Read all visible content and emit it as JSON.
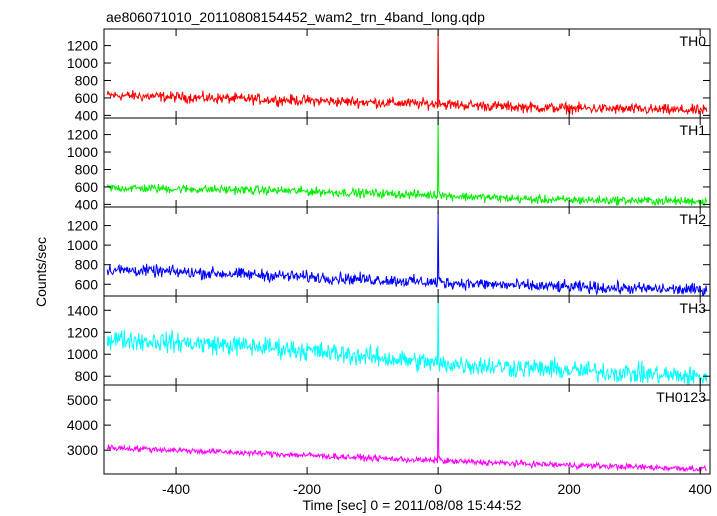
{
  "chart_data": {
    "type": "line",
    "title": "ae806071010_20110808154452_wam2_trn_4band_long.qdp",
    "xlabel": "Time [sec] 0 = 2011/08/08 15:44:52",
    "ylabel": "Counts/sec",
    "xlim": [
      -510,
      415
    ],
    "x_ticks": [
      -400,
      -200,
      0,
      200,
      400
    ],
    "grid": false,
    "panels": [
      {
        "name": "TH0",
        "color": "#ff0000",
        "ylim": [
          370,
          1390
        ],
        "y_ticks": [
          400,
          600,
          800,
          1000,
          1200
        ],
        "trend": [
          [
            -500,
            630
          ],
          [
            -250,
            580
          ],
          [
            -5,
            530
          ],
          [
            150,
            490
          ],
          [
            410,
            455
          ]
        ],
        "peak": {
          "x": 0,
          "y": 1390,
          "after": 560
        },
        "noise": 30
      },
      {
        "name": "TH1",
        "color": "#00ee00",
        "ylim": [
          370,
          1390
        ],
        "y_ticks": [
          400,
          600,
          800,
          1000,
          1200
        ],
        "trend": [
          [
            -500,
            590
          ],
          [
            -250,
            560
          ],
          [
            -5,
            505
          ],
          [
            150,
            455
          ],
          [
            410,
            435
          ]
        ],
        "peak": {
          "x": 0,
          "y": 1380,
          "after": 560
        },
        "noise": 25
      },
      {
        "name": "TH2",
        "color": "#0000ff",
        "ylim": [
          480,
          1390
        ],
        "y_ticks": [
          600,
          800,
          1000,
          1200
        ],
        "trend": [
          [
            -500,
            750
          ],
          [
            -250,
            690
          ],
          [
            -5,
            620
          ],
          [
            150,
            580
          ],
          [
            410,
            540
          ]
        ],
        "peak": {
          "x": 0,
          "y": 1340,
          "after": 640
        },
        "noise": 30
      },
      {
        "name": "TH3",
        "color": "#00ffff",
        "ylim": [
          720,
          1530
        ],
        "y_ticks": [
          800,
          1000,
          1200,
          1400
        ],
        "trend": [
          [
            -500,
            1140
          ],
          [
            -250,
            1060
          ],
          [
            -5,
            920
          ],
          [
            150,
            870
          ],
          [
            410,
            790
          ]
        ],
        "peak": {
          "x": 0,
          "y": 1530,
          "after": 900
        },
        "noise": 45
      },
      {
        "name": "TH0123",
        "color": "#ff00ff",
        "ylim": [
          2050,
          5600
        ],
        "y_ticks": [
          3000,
          4000,
          5000
        ],
        "trend": [
          [
            -500,
            3100
          ],
          [
            -250,
            2850
          ],
          [
            -5,
            2580
          ],
          [
            150,
            2440
          ],
          [
            410,
            2250
          ]
        ],
        "peak": {
          "x": 0,
          "y": 5600,
          "after": 2800
        },
        "noise": 60
      }
    ]
  }
}
